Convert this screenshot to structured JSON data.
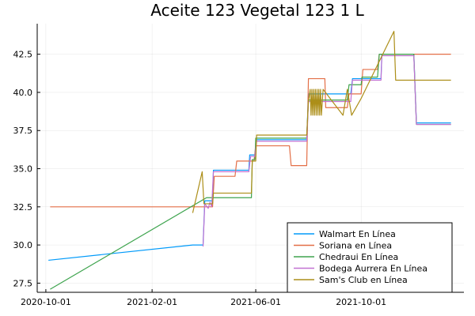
{
  "chart_data": {
    "type": "line",
    "title": "Aceite 123 Vegetal 123 1 L",
    "xlabel": "",
    "ylabel": "",
    "x_axis_type": "date",
    "xlim": [
      "2020-09-21",
      "2022-01-28"
    ],
    "ylim": [
      26.9,
      44.5
    ],
    "x_ticks": [
      "2020-10-01",
      "2021-02-01",
      "2021-06-01",
      "2021-10-01"
    ],
    "y_ticks": [
      27.5,
      30.0,
      32.5,
      35.0,
      37.5,
      40.0,
      42.5
    ],
    "grid": true,
    "legend_position": "bottom-right",
    "series": [
      {
        "name": "Walmart En Línea",
        "color": "#009AFA",
        "points": [
          [
            "2020-10-04",
            29.0
          ],
          [
            "2021-03-20",
            30.0
          ],
          [
            "2021-04-01",
            30.0
          ],
          [
            "2021-04-03",
            32.9
          ],
          [
            "2021-04-12",
            32.9
          ],
          [
            "2021-04-13",
            34.9
          ],
          [
            "2021-05-24",
            34.9
          ],
          [
            "2021-05-25",
            35.9
          ],
          [
            "2021-05-31",
            35.9
          ],
          [
            "2021-06-02",
            36.9
          ],
          [
            "2021-07-30",
            36.9
          ],
          [
            "2021-08-01",
            39.9
          ],
          [
            "2021-09-19",
            39.9
          ],
          [
            "2021-09-21",
            40.9
          ],
          [
            "2021-10-24",
            40.9
          ],
          [
            "2021-10-25",
            42.5
          ],
          [
            "2021-12-01",
            42.5
          ],
          [
            "2021-12-04",
            38.0
          ],
          [
            "2022-01-13",
            38.0
          ]
        ]
      },
      {
        "name": "Soriana en Línea",
        "color": "#E36F47",
        "points": [
          [
            "2020-10-06",
            32.5
          ],
          [
            "2021-04-12",
            32.5
          ],
          [
            "2021-04-14",
            34.5
          ],
          [
            "2021-05-08",
            34.5
          ],
          [
            "2021-05-10",
            35.5
          ],
          [
            "2021-05-30",
            35.5
          ],
          [
            "2021-06-01",
            36.5
          ],
          [
            "2021-07-10",
            36.5
          ],
          [
            "2021-07-12",
            35.2
          ],
          [
            "2021-07-30",
            35.2
          ],
          [
            "2021-08-01",
            40.9
          ],
          [
            "2021-08-20",
            40.9
          ],
          [
            "2021-08-21",
            39.0
          ],
          [
            "2021-09-15",
            39.0
          ],
          [
            "2021-09-17",
            39.9
          ],
          [
            "2021-10-01",
            39.9
          ],
          [
            "2021-10-03",
            41.5
          ],
          [
            "2021-10-20",
            41.5
          ],
          [
            "2021-10-22",
            42.5
          ],
          [
            "2022-01-13",
            42.5
          ]
        ]
      },
      {
        "name": "Chedraui En Línea",
        "color": "#3EA44E",
        "points": [
          [
            "2020-10-06",
            27.1
          ],
          [
            "2021-04-05",
            33.1
          ],
          [
            "2021-05-27",
            33.1
          ],
          [
            "2021-05-28",
            35.6
          ],
          [
            "2021-05-31",
            35.6
          ],
          [
            "2021-06-01",
            37.0
          ],
          [
            "2021-07-30",
            37.0
          ],
          [
            "2021-08-01",
            39.5
          ],
          [
            "2021-09-15",
            39.5
          ],
          [
            "2021-09-17",
            40.5
          ],
          [
            "2021-10-01",
            40.5
          ],
          [
            "2021-10-02",
            41.0
          ],
          [
            "2021-10-20",
            41.0
          ],
          [
            "2021-10-22",
            42.5
          ],
          [
            "2021-12-01",
            42.5
          ],
          [
            "2021-12-04",
            37.9
          ],
          [
            "2022-01-13",
            37.9
          ]
        ]
      },
      {
        "name": "Bodega Aurrera En Línea",
        "color": "#C271D2",
        "points": [
          [
            "2021-04-01",
            29.9
          ],
          [
            "2021-04-03",
            32.7
          ],
          [
            "2021-04-07",
            32.4
          ],
          [
            "2021-04-09",
            32.8
          ],
          [
            "2021-04-11",
            32.5
          ],
          [
            "2021-04-13",
            34.8
          ],
          [
            "2021-05-24",
            34.8
          ],
          [
            "2021-05-26",
            35.8
          ],
          [
            "2021-05-31",
            35.8
          ],
          [
            "2021-06-02",
            36.8
          ],
          [
            "2021-07-30",
            36.8
          ],
          [
            "2021-08-01",
            39.4
          ],
          [
            "2021-09-19",
            39.4
          ],
          [
            "2021-09-21",
            40.8
          ],
          [
            "2021-10-24",
            40.8
          ],
          [
            "2021-10-25",
            42.4
          ],
          [
            "2021-12-01",
            42.4
          ],
          [
            "2021-12-04",
            37.9
          ],
          [
            "2022-01-13",
            37.9
          ]
        ]
      },
      {
        "name": "Sam's Club en Línea",
        "color": "#AC8E18",
        "points": [
          [
            "2021-03-20",
            32.1
          ],
          [
            "2021-03-31",
            34.8
          ],
          [
            "2021-04-02",
            32.7
          ],
          [
            "2021-04-12",
            32.7
          ],
          [
            "2021-04-13",
            33.4
          ],
          [
            "2021-05-27",
            33.4
          ],
          [
            "2021-05-28",
            35.5
          ],
          [
            "2021-06-01",
            35.5
          ],
          [
            "2021-06-02",
            37.2
          ],
          [
            "2021-07-30",
            37.2
          ],
          [
            "2021-08-01",
            39.4
          ],
          [
            "2021-08-03",
            40.2
          ],
          [
            "2021-08-04",
            38.5
          ],
          [
            "2021-08-05",
            40.2
          ],
          [
            "2021-08-06",
            38.5
          ],
          [
            "2021-08-07",
            40.2
          ],
          [
            "2021-08-08",
            38.5
          ],
          [
            "2021-08-09",
            40.2
          ],
          [
            "2021-08-10",
            38.5
          ],
          [
            "2021-08-11",
            40.2
          ],
          [
            "2021-08-12",
            38.5
          ],
          [
            "2021-08-13",
            40.2
          ],
          [
            "2021-08-14",
            38.5
          ],
          [
            "2021-08-15",
            40.2
          ],
          [
            "2021-08-16",
            38.5
          ],
          [
            "2021-08-18",
            40.2
          ],
          [
            "2021-09-10",
            38.5
          ],
          [
            "2021-09-15",
            40.2
          ],
          [
            "2021-09-20",
            38.5
          ],
          [
            "2021-10-01",
            39.6
          ],
          [
            "2021-11-08",
            44.0
          ],
          [
            "2021-11-10",
            40.8
          ],
          [
            "2022-01-13",
            40.8
          ]
        ]
      }
    ]
  }
}
